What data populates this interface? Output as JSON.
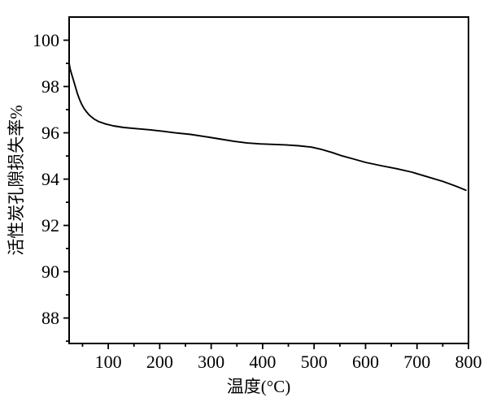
{
  "figure": {
    "background": "#ffffff",
    "axis_color": "#000000",
    "curve_color": "#000000"
  },
  "chart_data": {
    "type": "line",
    "title": "",
    "xlabel": "温度(°C)",
    "ylabel": "活性炭孔隙损失率%",
    "xlim": [
      24,
      800
    ],
    "ylim": [
      86.9,
      101.0
    ],
    "grid": false,
    "legend": "none",
    "x_major_ticks": [
      100,
      200,
      300,
      400,
      500,
      600,
      700,
      800
    ],
    "x_minor_ticks": [
      50,
      150,
      250,
      350,
      450,
      550,
      650,
      750
    ],
    "y_major_ticks": [
      88,
      90,
      92,
      94,
      96,
      98,
      100
    ],
    "y_minor_ticks": [
      87,
      89,
      91,
      93,
      95,
      97,
      99
    ],
    "series": [
      {
        "name": "活性炭孔隙损失率",
        "color": "#000000",
        "points": [
          [
            24,
            99.0
          ],
          [
            26,
            98.75
          ],
          [
            28,
            98.6
          ],
          [
            32,
            98.3
          ],
          [
            36,
            98.0
          ],
          [
            40,
            97.7
          ],
          [
            44,
            97.45
          ],
          [
            48,
            97.25
          ],
          [
            53,
            97.05
          ],
          [
            58,
            96.9
          ],
          [
            64,
            96.75
          ],
          [
            72,
            96.6
          ],
          [
            82,
            96.48
          ],
          [
            95,
            96.38
          ],
          [
            110,
            96.3
          ],
          [
            130,
            96.23
          ],
          [
            155,
            96.18
          ],
          [
            180,
            96.13
          ],
          [
            205,
            96.07
          ],
          [
            230,
            96.0
          ],
          [
            260,
            95.93
          ],
          [
            290,
            95.83
          ],
          [
            320,
            95.72
          ],
          [
            345,
            95.63
          ],
          [
            370,
            95.56
          ],
          [
            395,
            95.52
          ],
          [
            420,
            95.5
          ],
          [
            445,
            95.48
          ],
          [
            470,
            95.44
          ],
          [
            495,
            95.38
          ],
          [
            515,
            95.28
          ],
          [
            535,
            95.15
          ],
          [
            555,
            95.0
          ],
          [
            575,
            94.88
          ],
          [
            600,
            94.72
          ],
          [
            630,
            94.58
          ],
          [
            660,
            94.45
          ],
          [
            690,
            94.3
          ],
          [
            720,
            94.1
          ],
          [
            750,
            93.9
          ],
          [
            775,
            93.7
          ],
          [
            795,
            93.52
          ]
        ]
      }
    ]
  }
}
